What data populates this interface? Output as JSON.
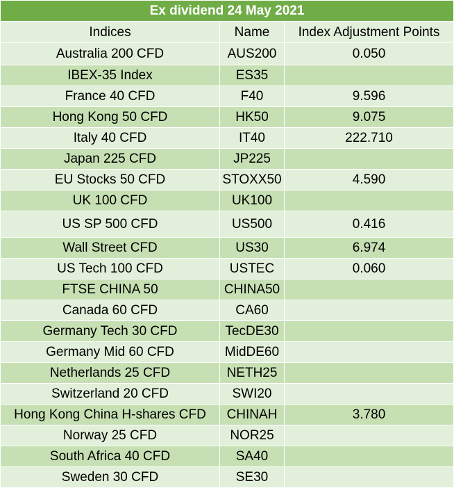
{
  "title": "Ex dividend 24 May 2021",
  "headers": [
    "Indices",
    "Name",
    "Index Adjustment Points"
  ],
  "rows": [
    [
      "Australia 200 CFD",
      "AUS200",
      "0.050"
    ],
    [
      "IBEX-35 Index",
      "ES35",
      ""
    ],
    [
      "France 40 CFD",
      "F40",
      "9.596"
    ],
    [
      "Hong Kong 50 CFD",
      "HK50",
      "9.075"
    ],
    [
      "Italy 40 CFD",
      "IT40",
      "222.710"
    ],
    [
      "Japan 225 CFD",
      "JP225",
      ""
    ],
    [
      "EU Stocks 50 CFD",
      "STOXX50",
      "4.590"
    ],
    [
      "UK 100 CFD",
      "UK100",
      ""
    ],
    [
      "US SP 500 CFD",
      "US500",
      "0.416"
    ],
    [
      "Wall Street CFD",
      "US30",
      "6.974"
    ],
    [
      "US Tech 100 CFD",
      "USTEC",
      "0.060"
    ],
    [
      "FTSE CHINA 50",
      "CHINA50",
      ""
    ],
    [
      "Canada 60 CFD",
      "CA60",
      ""
    ],
    [
      "Germany Tech 30 CFD",
      "TecDE30",
      ""
    ],
    [
      "Germany Mid 60 CFD",
      "MidDE60",
      ""
    ],
    [
      "Netherlands 25 CFD",
      "NETH25",
      ""
    ],
    [
      "Switzerland 20 CFD",
      "SWI20",
      ""
    ],
    [
      "Hong Kong China H-shares CFD",
      "CHINAH",
      "3.780"
    ],
    [
      "Norway 25 CFD",
      "NOR25",
      ""
    ],
    [
      "South Africa 40 CFD",
      "SA40",
      ""
    ],
    [
      "Sweden 30 CFD",
      "SE30",
      ""
    ]
  ],
  "colors": {
    "title_bg": "#70ad47",
    "row_light": "#e2efda",
    "row_dark": "#c6e0b4"
  }
}
